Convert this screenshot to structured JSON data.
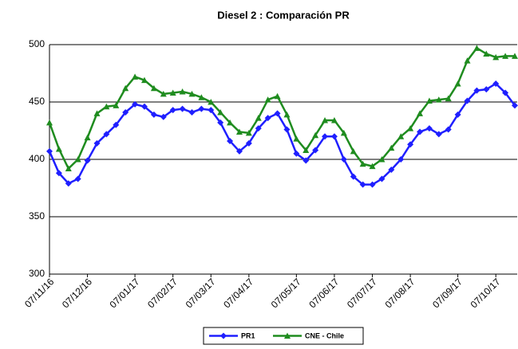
{
  "chart_data": {
    "type": "line",
    "title": "Diesel 2 : Comparación PR",
    "categories": [
      "07/11/16",
      null,
      null,
      null,
      "07/12/16",
      null,
      null,
      null,
      null,
      "07/01/17",
      null,
      null,
      null,
      "07/02/17",
      null,
      null,
      null,
      "07/03/17",
      null,
      null,
      null,
      "07/04/17",
      null,
      null,
      null,
      null,
      "07/05/17",
      null,
      null,
      null,
      "07/06/17",
      null,
      null,
      null,
      "07/07/17",
      null,
      null,
      null,
      "07/08/17",
      null,
      null,
      null,
      null,
      "07/09/17",
      null,
      null,
      null,
      "07/10/17",
      null,
      null
    ],
    "series": [
      {
        "name": "PR1",
        "color": "#1f1fff",
        "marker": "diamond",
        "values": [
          407,
          388,
          379,
          383,
          399,
          414,
          422,
          430,
          441,
          448,
          446,
          439,
          437,
          443,
          444,
          441,
          444,
          443,
          432,
          416,
          407,
          414,
          427,
          436,
          440,
          426,
          405,
          399,
          408,
          420,
          420,
          400,
          385,
          378,
          378,
          383,
          391,
          400,
          413,
          424,
          427,
          422,
          426,
          439,
          451,
          460,
          461,
          466,
          458,
          447
        ]
      },
      {
        "name": "CNE - Chile",
        "color": "#1f8c1f",
        "marker": "triangle",
        "values": [
          432,
          409,
          392,
          400,
          419,
          440,
          446,
          447,
          462,
          472,
          469,
          462,
          457,
          458,
          459,
          457,
          454,
          450,
          441,
          432,
          424,
          423,
          436,
          452,
          455,
          439,
          418,
          408,
          421,
          434,
          434,
          423,
          407,
          396,
          394,
          400,
          410,
          420,
          427,
          440,
          451,
          452,
          453,
          466,
          486,
          497,
          492,
          489,
          490,
          490
        ]
      }
    ],
    "ylim": [
      300,
      500
    ],
    "yticks": [
      300,
      350,
      400,
      450,
      500
    ],
    "grid": true,
    "legend": "bottom"
  }
}
